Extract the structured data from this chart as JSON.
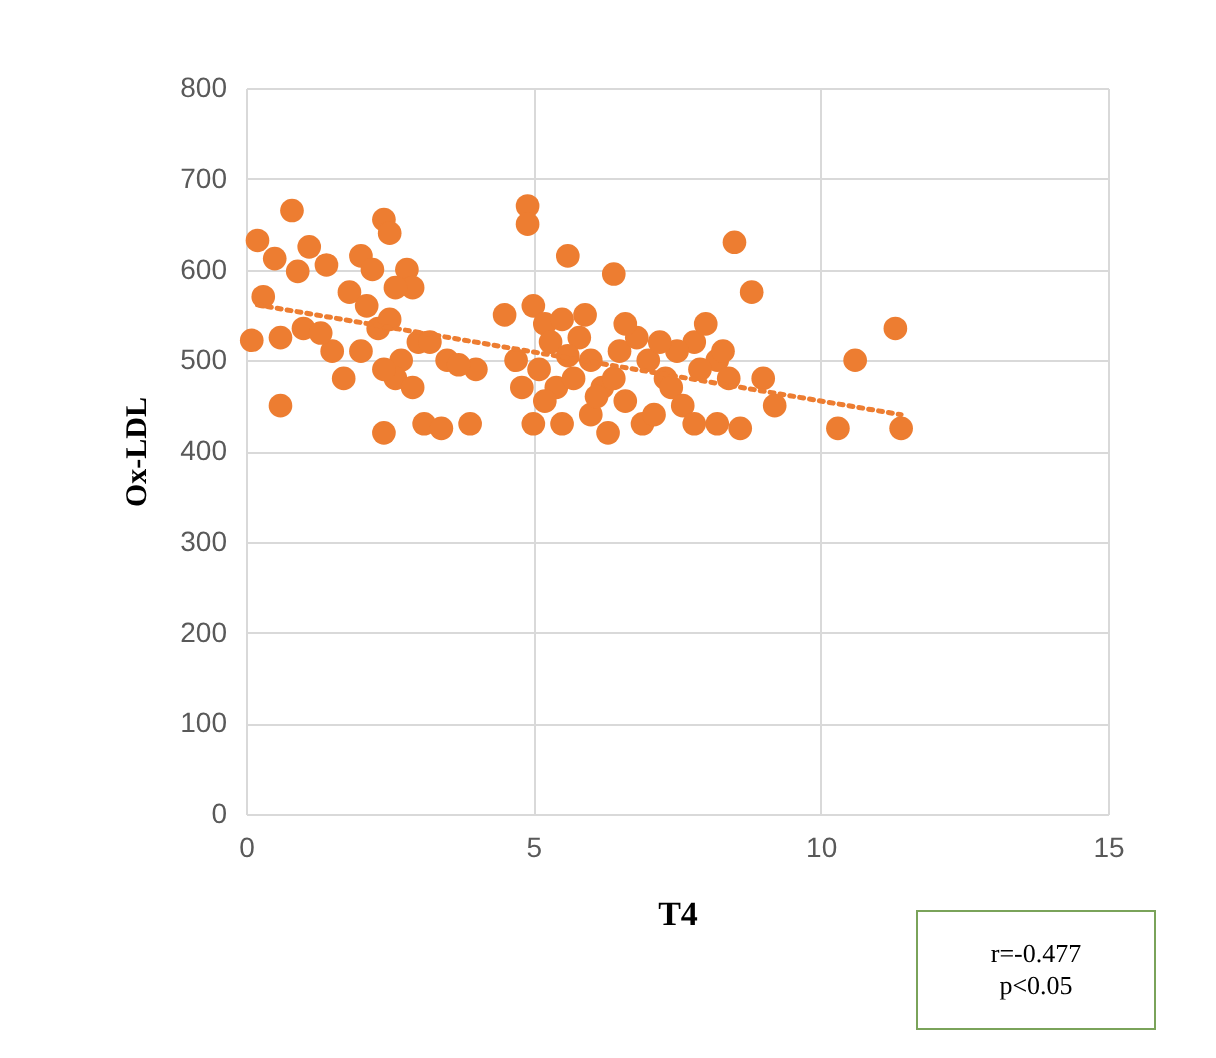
{
  "chart_data": {
    "type": "scatter",
    "xlabel": "T4",
    "ylabel": "Ox-LDL",
    "xlim": [
      0,
      15
    ],
    "xticks": [
      0,
      5,
      10,
      15
    ],
    "ylim": [
      0,
      800
    ],
    "yticks": [
      0,
      100,
      200,
      300,
      400,
      500,
      600,
      700,
      800
    ],
    "grid": true,
    "marker": "circle",
    "annotations": [
      "r=-0.477",
      "p<0.05"
    ],
    "series": [
      {
        "color": "#ed7d31",
        "x": [
          0.2,
          0.5,
          0.8,
          1.1,
          0.3,
          0.1,
          0.6,
          1.0,
          0.6,
          0.9,
          1.4,
          1.5,
          1.7,
          1.3,
          1.8,
          2.0,
          2.2,
          2.4,
          2.5,
          2.8,
          2.9,
          2.6,
          2.1,
          2.3,
          2.5,
          2.0,
          2.7,
          3.0,
          3.2,
          3.5,
          2.6,
          2.4,
          2.9,
          3.1,
          3.4,
          2.4,
          3.9,
          4.5,
          4.0,
          3.7,
          4.9,
          4.9,
          5.6,
          6.4,
          5.0,
          5.2,
          5.5,
          5.3,
          5.8,
          6.0,
          5.1,
          5.4,
          5.7,
          6.2,
          6.5,
          6.8,
          7.0,
          7.3,
          6.6,
          6.0,
          5.5,
          5.0,
          6.3,
          6.9,
          7.4,
          7.8,
          8.0,
          8.2,
          7.6,
          7.1,
          8.5,
          8.8,
          8.4,
          8.2,
          7.8,
          8.6,
          9.0,
          9.2,
          8.3,
          5.9,
          6.6,
          7.5,
          5.2,
          6.1,
          4.7,
          4.8,
          7.2,
          7.9,
          6.4,
          5.6,
          10.3,
          10.6,
          11.3,
          11.4
        ],
        "values": [
          632,
          612,
          665,
          625,
          570,
          522,
          525,
          535,
          450,
          598,
          605,
          510,
          480,
          530,
          575,
          615,
          600,
          655,
          640,
          600,
          580,
          580,
          560,
          535,
          545,
          510,
          500,
          520,
          520,
          500,
          480,
          490,
          470,
          430,
          425,
          420,
          430,
          550,
          490,
          495,
          670,
          650,
          615,
          595,
          560,
          540,
          545,
          520,
          525,
          500,
          490,
          470,
          480,
          470,
          510,
          525,
          500,
          480,
          455,
          440,
          430,
          430,
          420,
          430,
          470,
          520,
          540,
          500,
          450,
          440,
          630,
          575,
          480,
          430,
          430,
          425,
          480,
          450,
          510,
          550,
          540,
          510,
          455,
          460,
          500,
          470,
          520,
          490,
          480,
          505,
          425,
          500,
          535,
          425
        ]
      },
      {
        "type": "line",
        "color": "#ed7d31",
        "line_style": "dotted",
        "marker": "none",
        "x": [
          0.2,
          11.4
        ],
        "values": [
          561,
          440
        ]
      }
    ]
  }
}
